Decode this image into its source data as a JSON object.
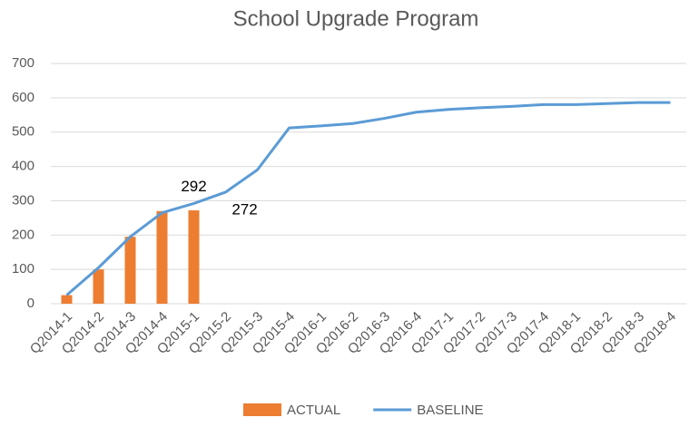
{
  "chart_data": {
    "type": "bar-line",
    "title": "School Upgrade Program",
    "categories": [
      "Q2014-1",
      "Q2014-2",
      "Q2014-3",
      "Q2014-4",
      "Q2015-1",
      "Q2015-2",
      "Q2015-3",
      "Q2015-4",
      "Q2016-1",
      "Q2016-2",
      "Q2016-3",
      "Q2016-4",
      "Q2017-1",
      "Q2017-2",
      "Q2017-3",
      "Q2017-4",
      "Q2018-1",
      "Q2018-2",
      "Q2018-3",
      "Q2018-4"
    ],
    "series": [
      {
        "name": "ACTUAL",
        "type": "bar",
        "color": "#ed7d31",
        "values": [
          25,
          100,
          195,
          270,
          272,
          null,
          null,
          null,
          null,
          null,
          null,
          null,
          null,
          null,
          null,
          null,
          null,
          null,
          null,
          null
        ],
        "value_labels": [
          null,
          null,
          null,
          null,
          "272",
          null,
          null,
          null,
          null,
          null,
          null,
          null,
          null,
          null,
          null,
          null,
          null,
          null,
          null,
          null
        ]
      },
      {
        "name": "BASELINE",
        "type": "line",
        "color": "#5b9bd5",
        "values": [
          25,
          105,
          195,
          265,
          292,
          325,
          390,
          512,
          518,
          525,
          540,
          558,
          566,
          571,
          575,
          580,
          580,
          583,
          586,
          586
        ],
        "value_labels": [
          null,
          null,
          null,
          null,
          "292",
          null,
          null,
          null,
          null,
          null,
          null,
          null,
          null,
          null,
          null,
          null,
          null,
          null,
          null,
          null
        ]
      }
    ],
    "ylim": [
      0,
      700
    ],
    "yticks": [
      0,
      100,
      200,
      300,
      400,
      500,
      600,
      700
    ],
    "grid": true,
    "legend": "bottom"
  }
}
